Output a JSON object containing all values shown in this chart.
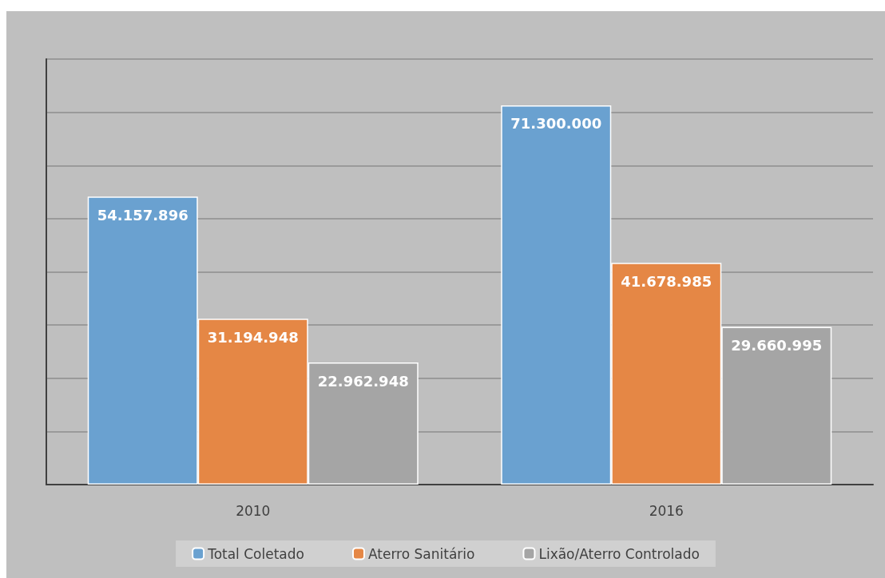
{
  "chart_data": {
    "type": "bar",
    "categories": [
      "2010",
      "2016"
    ],
    "series": [
      {
        "name": "Total Coletado",
        "color": "#6aa1d0",
        "values": [
          54157896,
          71300000
        ],
        "value_labels": [
          "54.157.896",
          "71.300.000"
        ]
      },
      {
        "name": "Aterro Sanitário",
        "color": "#e58745",
        "values": [
          31194948,
          41678985
        ],
        "value_labels": [
          "31.194.948",
          "41.678.985"
        ]
      },
      {
        "name": "Lixão/Aterro Controlado",
        "color": "#a5a5a5",
        "values": [
          22962948,
          29660995
        ],
        "value_labels": [
          "22.962.948",
          "29.660.995"
        ]
      }
    ],
    "ylim": [
      0,
      80000000
    ],
    "yticks": [
      {
        "value": 0,
        "label": null
      },
      {
        "value": 10000000,
        "label": null
      },
      {
        "value": 20000000,
        "label": null
      },
      {
        "value": 30000000,
        "label": null
      },
      {
        "value": 40000000,
        "label": null
      },
      {
        "value": 50000000,
        "label": null
      },
      {
        "value": 60000000,
        "label": null
      },
      {
        "value": 70000000,
        "label": null
      },
      {
        "value": 80000000,
        "label": null
      }
    ],
    "tick_labels": "x",
    "grid": "y",
    "legend": "bottom"
  }
}
